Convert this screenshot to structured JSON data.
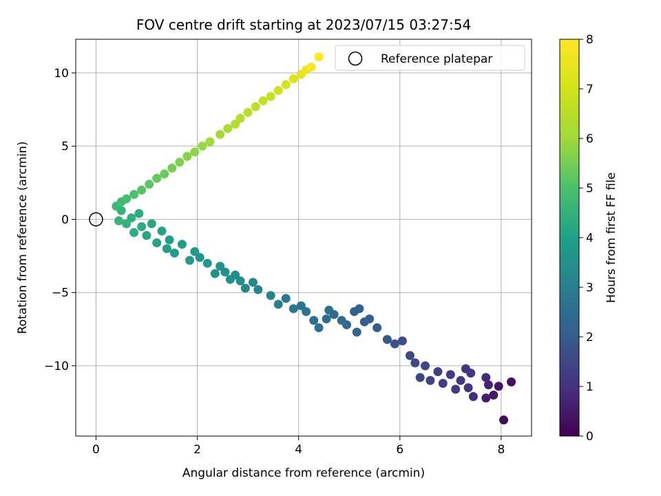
{
  "chart_data": {
    "type": "scatter",
    "title": "FOV centre drift starting at 2023/07/15 03:27:54",
    "xlabel": "Angular distance from reference (arcmin)",
    "ylabel": "Rotation from reference (arcmin)",
    "xlim": [
      -0.4,
      8.6
    ],
    "ylim": [
      -14.8,
      12.3
    ],
    "xticks": [
      0,
      2,
      4,
      6,
      8
    ],
    "yticks": [
      -10,
      -5,
      0,
      5,
      10
    ],
    "ytick_labels": [
      "−10",
      "−5",
      "0",
      "5",
      "10"
    ],
    "grid": true,
    "legend": {
      "placement": "top-right",
      "entries": [
        "Reference platepar"
      ]
    },
    "reference_point": {
      "x": 0,
      "y": 0
    },
    "colorbar": {
      "label": "Hours from first FF file",
      "range": [
        0,
        8
      ],
      "ticks": [
        0,
        1,
        2,
        3,
        4,
        5,
        6,
        7,
        8
      ],
      "colormap": "viridis"
    },
    "series": [
      {
        "points": [
          [
            8.05,
            -13.7,
            0.2
          ],
          [
            8.2,
            -11.1,
            0.3
          ],
          [
            7.95,
            -11.4,
            0.4
          ],
          [
            7.85,
            -12.0,
            0.5
          ],
          [
            7.7,
            -12.2,
            0.6
          ],
          [
            7.75,
            -11.3,
            0.7
          ],
          [
            7.7,
            -10.8,
            0.8
          ],
          [
            7.45,
            -12.1,
            0.9
          ],
          [
            7.35,
            -11.5,
            1.0
          ],
          [
            7.3,
            -10.2,
            1.0
          ],
          [
            7.4,
            -10.5,
            1.1
          ],
          [
            7.2,
            -11.0,
            1.1
          ],
          [
            7.1,
            -11.6,
            1.2
          ],
          [
            7.0,
            -10.6,
            1.2
          ],
          [
            6.85,
            -11.2,
            1.3
          ],
          [
            6.75,
            -10.4,
            1.3
          ],
          [
            6.6,
            -11.0,
            1.4
          ],
          [
            6.5,
            -10.0,
            1.4
          ],
          [
            6.4,
            -10.8,
            1.5
          ],
          [
            6.3,
            -9.8,
            1.5
          ],
          [
            6.2,
            -9.3,
            1.6
          ],
          [
            6.05,
            -8.3,
            1.7
          ],
          [
            5.9,
            -8.5,
            1.8
          ],
          [
            5.75,
            -8.2,
            1.9
          ],
          [
            5.55,
            -7.4,
            2.0
          ],
          [
            5.4,
            -6.8,
            2.1
          ],
          [
            5.3,
            -7.0,
            2.1
          ],
          [
            5.2,
            -6.1,
            2.2
          ],
          [
            5.1,
            -6.3,
            2.2
          ],
          [
            5.15,
            -7.7,
            2.3
          ],
          [
            4.95,
            -7.2,
            2.3
          ],
          [
            4.85,
            -6.9,
            2.4
          ],
          [
            4.7,
            -6.5,
            2.4
          ],
          [
            4.6,
            -6.2,
            2.5
          ],
          [
            4.55,
            -6.8,
            2.5
          ],
          [
            4.4,
            -7.4,
            2.6
          ],
          [
            4.3,
            -6.9,
            2.6
          ],
          [
            4.15,
            -6.3,
            2.7
          ],
          [
            4.05,
            -5.9,
            2.8
          ],
          [
            3.9,
            -6.1,
            2.8
          ],
          [
            3.75,
            -5.4,
            2.9
          ],
          [
            3.6,
            -5.8,
            3.0
          ],
          [
            3.45,
            -5.2,
            3.1
          ],
          [
            3.2,
            -4.8,
            3.2
          ],
          [
            3.1,
            -4.3,
            3.3
          ],
          [
            2.95,
            -4.7,
            3.3
          ],
          [
            2.85,
            -4.2,
            3.4
          ],
          [
            2.75,
            -3.8,
            3.4
          ],
          [
            2.65,
            -4.1,
            3.5
          ],
          [
            2.55,
            -3.6,
            3.5
          ],
          [
            2.45,
            -3.2,
            3.6
          ],
          [
            2.35,
            -3.7,
            3.6
          ],
          [
            2.2,
            -3.0,
            3.7
          ],
          [
            2.05,
            -2.6,
            3.7
          ],
          [
            1.95,
            -2.2,
            3.8
          ],
          [
            1.85,
            -2.8,
            3.8
          ],
          [
            1.7,
            -1.7,
            3.9
          ],
          [
            1.55,
            -2.3,
            3.9
          ],
          [
            1.45,
            -1.4,
            4.0
          ],
          [
            1.4,
            -2.0,
            4.0
          ],
          [
            1.3,
            -0.8,
            4.1
          ],
          [
            1.2,
            -1.6,
            4.1
          ],
          [
            1.1,
            -0.3,
            4.2
          ],
          [
            1.0,
            -1.1,
            4.2
          ],
          [
            0.9,
            -0.5,
            4.3
          ],
          [
            0.85,
            0.4,
            4.3
          ],
          [
            0.75,
            -0.9,
            4.4
          ],
          [
            0.7,
            0.1,
            4.4
          ],
          [
            0.6,
            -0.3,
            4.5
          ],
          [
            0.5,
            0.6,
            4.5
          ],
          [
            0.45,
            -0.1,
            4.6
          ],
          [
            0.4,
            0.9,
            4.7
          ],
          [
            0.5,
            1.2,
            4.8
          ],
          [
            0.6,
            1.4,
            4.9
          ],
          [
            0.75,
            1.7,
            5.0
          ],
          [
            0.9,
            2.0,
            5.1
          ],
          [
            1.05,
            2.4,
            5.2
          ],
          [
            1.2,
            2.8,
            5.3
          ],
          [
            1.35,
            3.1,
            5.4
          ],
          [
            1.5,
            3.5,
            5.5
          ],
          [
            1.65,
            3.9,
            5.6
          ],
          [
            1.8,
            4.3,
            5.7
          ],
          [
            1.95,
            4.6,
            5.8
          ],
          [
            2.1,
            5.0,
            5.9
          ],
          [
            2.25,
            5.3,
            6.0
          ],
          [
            2.45,
            5.8,
            6.1
          ],
          [
            2.6,
            6.2,
            6.2
          ],
          [
            2.75,
            6.5,
            6.3
          ],
          [
            2.85,
            6.9,
            6.4
          ],
          [
            3.0,
            7.3,
            6.5
          ],
          [
            3.15,
            7.7,
            6.6
          ],
          [
            3.3,
            8.1,
            6.7
          ],
          [
            3.45,
            8.4,
            6.8
          ],
          [
            3.6,
            8.8,
            6.9
          ],
          [
            3.75,
            9.2,
            7.0
          ],
          [
            3.9,
            9.6,
            7.2
          ],
          [
            4.05,
            9.9,
            7.4
          ],
          [
            4.15,
            10.2,
            7.6
          ],
          [
            4.25,
            10.4,
            7.8
          ],
          [
            4.4,
            11.1,
            8.0
          ]
        ]
      }
    ]
  }
}
